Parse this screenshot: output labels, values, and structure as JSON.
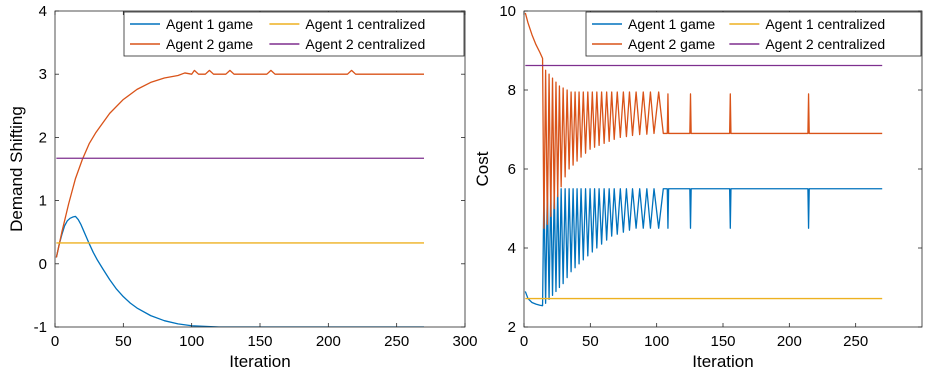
{
  "chart_data": [
    {
      "type": "line",
      "title": "",
      "xlabel": "Iteration",
      "ylabel": "Demand Shifting",
      "xlim": [
        0,
        300
      ],
      "ylim": [
        -1,
        4
      ],
      "xticks": [
        0,
        50,
        100,
        150,
        200,
        250,
        300
      ],
      "yticks": [
        -1,
        0,
        1,
        2,
        3,
        4
      ],
      "grid": false,
      "legend_position": "top-right",
      "legend_columns": 2,
      "series": [
        {
          "name": "Agent 1 game",
          "color": "#0072BD",
          "x": [
            1,
            3,
            5,
            7,
            9,
            11,
            13,
            15,
            17,
            19,
            21,
            23,
            25,
            28,
            31,
            35,
            40,
            45,
            50,
            55,
            60,
            70,
            80,
            90,
            100,
            110,
            120,
            150,
            200,
            270
          ],
          "y": [
            0.1,
            0.3,
            0.46,
            0.6,
            0.68,
            0.72,
            0.74,
            0.75,
            0.7,
            0.62,
            0.52,
            0.42,
            0.32,
            0.18,
            0.06,
            -0.08,
            -0.25,
            -0.4,
            -0.52,
            -0.62,
            -0.7,
            -0.82,
            -0.9,
            -0.95,
            -0.98,
            -0.99,
            -1.0,
            -1.0,
            -1.0,
            -1.0
          ]
        },
        {
          "name": "Agent 2 game",
          "color": "#D95319",
          "x": [
            1,
            5,
            10,
            15,
            20,
            25,
            30,
            40,
            50,
            60,
            70,
            80,
            90,
            95,
            100,
            102,
            105,
            110,
            113,
            116,
            125,
            128,
            131,
            150,
            155,
            158,
            161,
            200,
            214,
            217,
            220,
            270
          ],
          "y": [
            0.1,
            0.5,
            0.95,
            1.35,
            1.65,
            1.9,
            2.08,
            2.38,
            2.6,
            2.76,
            2.87,
            2.94,
            2.98,
            3.02,
            3.0,
            3.06,
            3.0,
            3.0,
            3.06,
            3.0,
            3.0,
            3.06,
            3.0,
            3.0,
            3.0,
            3.06,
            3.0,
            3.0,
            3.0,
            3.06,
            3.0,
            3.0
          ]
        },
        {
          "name": "Agent 1 centralized",
          "color": "#EDB120",
          "x": [
            1,
            270
          ],
          "y": [
            0.33,
            0.33
          ]
        },
        {
          "name": "Agent 2 centralized",
          "color": "#7E2F8E",
          "x": [
            1,
            270
          ],
          "y": [
            1.67,
            1.67
          ]
        }
      ]
    },
    {
      "type": "line",
      "title": "",
      "xlabel": "Iteration",
      "ylabel": "Cost",
      "xlim": [
        0,
        300
      ],
      "ylim": [
        2,
        10
      ],
      "xticks": [
        0,
        50,
        100,
        150,
        200,
        250
      ],
      "yticks": [
        2,
        4,
        6,
        8,
        10
      ],
      "grid": false,
      "legend_position": "top-right",
      "legend_columns": 2,
      "series": [
        {
          "name": "Agent 1 game",
          "color": "#0072BD",
          "x": [
            1,
            3,
            6,
            9,
            12,
            14,
            15.0,
            16.3,
            17.6,
            18.9,
            20.2,
            21.5,
            22.8,
            24.1,
            25.4,
            26.7,
            28.0,
            29.5,
            31.0,
            32.5,
            34.0,
            35.5,
            37.0,
            38.5,
            40.0,
            41.5,
            43.0,
            44.7,
            46.4,
            48.1,
            49.8,
            51.5,
            53.2,
            54.9,
            56.6,
            58.5,
            60.4,
            62.3,
            64.2,
            66.1,
            68.0,
            70.3,
            72.6,
            74.9,
            77.2,
            79.5,
            81.8,
            84.5,
            87.2,
            89.9,
            92.6,
            95.3,
            98.0,
            101.5,
            105.0,
            108.0,
            108.5,
            109,
            125,
            125.5,
            126,
            155,
            155.5,
            156,
            214,
            214.5,
            215,
            270
          ],
          "y": [
            2.9,
            2.72,
            2.62,
            2.58,
            2.55,
            2.54,
            5.5,
            2.6,
            5.5,
            2.7,
            5.5,
            2.8,
            5.5,
            2.9,
            5.5,
            3.0,
            5.5,
            3.1,
            5.5,
            3.25,
            5.5,
            3.4,
            5.5,
            3.5,
            5.5,
            3.6,
            5.5,
            3.7,
            5.5,
            3.8,
            5.5,
            3.9,
            5.5,
            4.0,
            5.5,
            4.1,
            5.5,
            4.2,
            5.5,
            4.3,
            5.5,
            4.35,
            5.5,
            4.4,
            5.5,
            4.45,
            5.5,
            4.5,
            5.5,
            4.5,
            5.5,
            4.5,
            5.5,
            4.5,
            5.5,
            5.5,
            4.5,
            5.5,
            5.5,
            4.5,
            5.5,
            5.5,
            4.5,
            5.5,
            5.5,
            4.5,
            5.5,
            5.5
          ]
        },
        {
          "name": "Agent 2 game",
          "color": "#D95319",
          "x": [
            1,
            3,
            6,
            9,
            12,
            14,
            15.0,
            16.3,
            17.6,
            18.9,
            20.2,
            21.5,
            22.8,
            24.1,
            25.4,
            26.7,
            28.0,
            29.5,
            31.0,
            32.5,
            34.0,
            35.5,
            37.0,
            38.5,
            40.0,
            41.5,
            43.0,
            44.7,
            46.4,
            48.1,
            49.8,
            51.5,
            53.2,
            54.9,
            56.6,
            58.5,
            60.4,
            62.3,
            64.2,
            66.1,
            68.0,
            70.3,
            72.6,
            74.9,
            77.2,
            79.5,
            81.8,
            84.5,
            87.2,
            89.9,
            92.6,
            95.3,
            98.0,
            101.5,
            105.0,
            108.0,
            108.5,
            109,
            125,
            125.5,
            126,
            155,
            155.5,
            156,
            214,
            214.5,
            215,
            270
          ],
          "y": [
            9.95,
            9.7,
            9.4,
            9.15,
            8.95,
            8.8,
            4.5,
            8.5,
            4.6,
            8.4,
            4.8,
            8.3,
            5.0,
            8.2,
            5.3,
            8.1,
            5.55,
            8.05,
            5.8,
            8.0,
            6.0,
            7.95,
            6.1,
            7.95,
            6.2,
            7.95,
            6.3,
            7.95,
            6.4,
            7.95,
            6.5,
            7.95,
            6.55,
            7.95,
            6.6,
            7.95,
            6.65,
            7.95,
            6.7,
            7.95,
            6.75,
            7.95,
            6.8,
            7.95,
            6.82,
            7.95,
            6.85,
            7.95,
            6.87,
            7.95,
            6.88,
            7.95,
            6.9,
            7.95,
            6.9,
            6.9,
            7.9,
            6.9,
            6.9,
            7.9,
            6.9,
            6.9,
            7.9,
            6.9,
            6.9,
            7.9,
            6.9,
            6.9
          ]
        },
        {
          "name": "Agent 1 centralized",
          "color": "#EDB120",
          "x": [
            1,
            270
          ],
          "y": [
            2.72,
            2.72
          ]
        },
        {
          "name": "Agent 2 centralized",
          "color": "#7E2F8E",
          "x": [
            1,
            270
          ],
          "y": [
            8.62,
            8.62
          ]
        }
      ]
    }
  ]
}
